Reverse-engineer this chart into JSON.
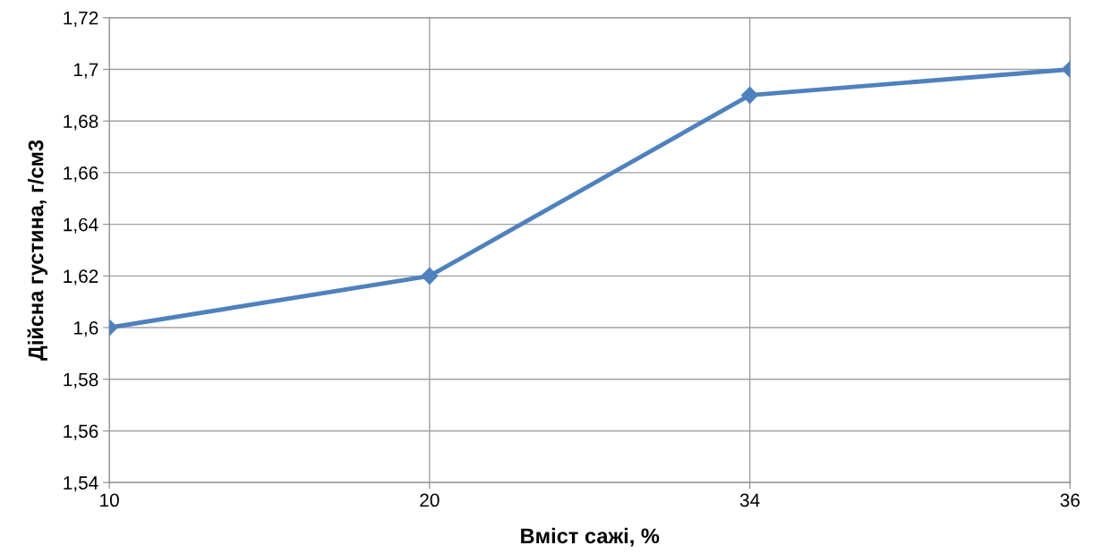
{
  "chart_data": {
    "type": "line",
    "xlabel": "Вміст сажі, %",
    "ylabel": "Дійсна густина, г/см3",
    "categories": [
      "10",
      "20",
      "34",
      "36"
    ],
    "series": [
      {
        "color": "#4f81bd",
        "values": [
          1.6,
          1.62,
          1.69,
          1.7
        ]
      }
    ],
    "ylim": [
      1.54,
      1.72
    ],
    "yticks": [
      {
        "value": 1.54,
        "label": "1,54"
      },
      {
        "value": 1.56,
        "label": "1,56"
      },
      {
        "value": 1.58,
        "label": "1,58"
      },
      {
        "value": 1.6,
        "label": "1,6"
      },
      {
        "value": 1.62,
        "label": "1,62"
      },
      {
        "value": 1.64,
        "label": "1,64"
      },
      {
        "value": 1.66,
        "label": "1,66"
      },
      {
        "value": 1.68,
        "label": "1,68"
      },
      {
        "value": 1.7,
        "label": "1,7"
      },
      {
        "value": 1.72,
        "label": "1,72"
      }
    ],
    "grid": true,
    "marker": "diamond",
    "line_style": "solid"
  }
}
